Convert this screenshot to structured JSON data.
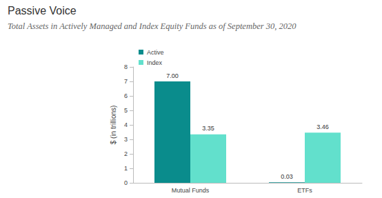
{
  "chart_data": {
    "type": "bar",
    "title": "Passive Voice",
    "subtitle": "Total Assets in Actively Managed and Index Equity Funds as of September 30, 2020",
    "y_label": "$ (in trillions)",
    "categories": [
      "Mutual Funds",
      "ETFs"
    ],
    "series": [
      {
        "name": "Active",
        "color": "#0a8c8c",
        "values": [
          7.0,
          0.03
        ],
        "value_labels": [
          "7.00",
          "0.03"
        ]
      },
      {
        "name": "Index",
        "color": "#62e0cc",
        "values": [
          3.35,
          3.46
        ],
        "value_labels": [
          "3.35",
          "3.46"
        ]
      }
    ],
    "ylim": [
      0,
      8
    ],
    "yticks": [
      0,
      1,
      2,
      3,
      4,
      5,
      6,
      7,
      8
    ],
    "grid": false,
    "legend": "upper left",
    "data_labels": true
  }
}
